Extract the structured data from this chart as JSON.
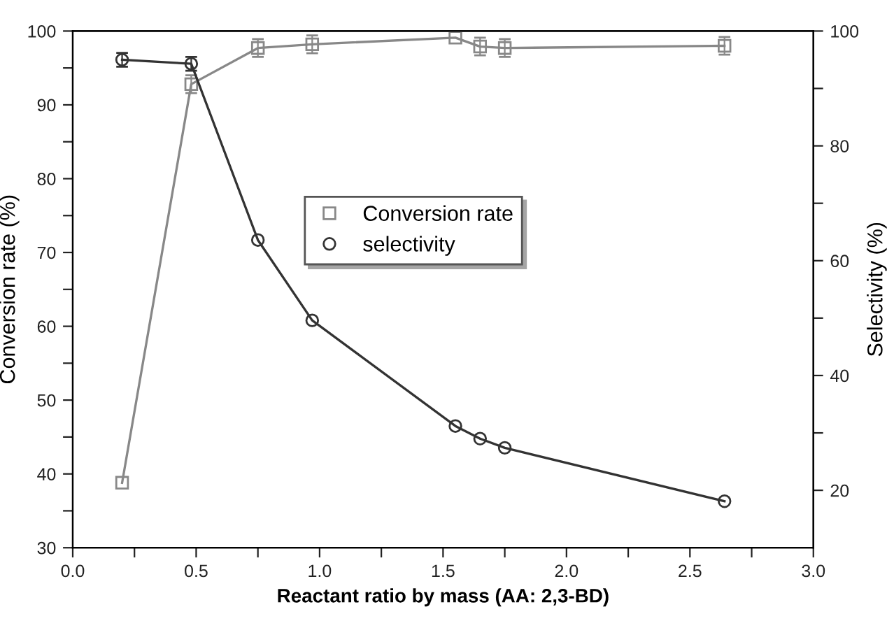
{
  "chart_data": {
    "type": "line",
    "xlabel": "Reactant ratio by mass (AA: 2,3-BD)",
    "ylabel": "Conversion rate (%)",
    "y2label": "Selectivity (%)",
    "x": [
      0.2,
      0.48,
      0.75,
      0.97,
      1.55,
      1.65,
      1.75,
      2.64
    ],
    "series": [
      {
        "name": "Conversion rate",
        "color": "#888888",
        "marker": "square",
        "values": [
          38.8,
          92.8,
          97.7,
          98.2,
          99.1,
          97.9,
          97.7,
          98.0
        ],
        "errors": [
          null,
          1.2,
          1.2,
          1.2,
          null,
          1.2,
          1.2,
          1.2
        ]
      },
      {
        "name": "selectivity",
        "color": "#333333",
        "marker": "circle",
        "axis": "y2",
        "values": [
          95,
          94.3,
          63.6,
          49.6,
          31.2,
          29.0,
          27.4,
          18.1
        ],
        "errors": [
          1.2,
          1.2,
          null,
          null,
          null,
          null,
          null,
          null
        ]
      }
    ],
    "xlim": [
      0.0,
      3.0
    ],
    "xticks": [
      {
        "value": 0.0,
        "label": "0.0"
      },
      {
        "value": 0.25,
        "label": null
      },
      {
        "value": 0.5,
        "label": "0.5"
      },
      {
        "value": 0.75,
        "label": null
      },
      {
        "value": 1.0,
        "label": "1.0"
      },
      {
        "value": 1.25,
        "label": null
      },
      {
        "value": 1.5,
        "label": "1.5"
      },
      {
        "value": 1.75,
        "label": null
      },
      {
        "value": 2.0,
        "label": "2.0"
      },
      {
        "value": 2.25,
        "label": null
      },
      {
        "value": 2.5,
        "label": "2.5"
      },
      {
        "value": 2.75,
        "label": null
      },
      {
        "value": 3.0,
        "label": "3.0"
      }
    ],
    "ylim": [
      30,
      100
    ],
    "yticks": [
      30,
      {
        "value": 35,
        "label": null
      },
      40,
      {
        "value": 45,
        "label": null
      },
      50,
      {
        "value": 55,
        "label": null
      },
      60,
      {
        "value": 65,
        "label": null
      },
      70,
      {
        "value": 75,
        "label": null
      },
      80,
      {
        "value": 85,
        "label": null
      },
      90,
      {
        "value": 95,
        "label": null
      },
      100
    ],
    "y2lim": [
      10,
      100
    ],
    "y2ticks": [
      20,
      {
        "value": 30,
        "label": null
      },
      40,
      {
        "value": 50,
        "label": null
      },
      60,
      {
        "value": 70,
        "label": null
      },
      80,
      {
        "value": 90,
        "label": null
      },
      100
    ],
    "legend": "top center",
    "grid": false,
    "line_style": "solid"
  }
}
